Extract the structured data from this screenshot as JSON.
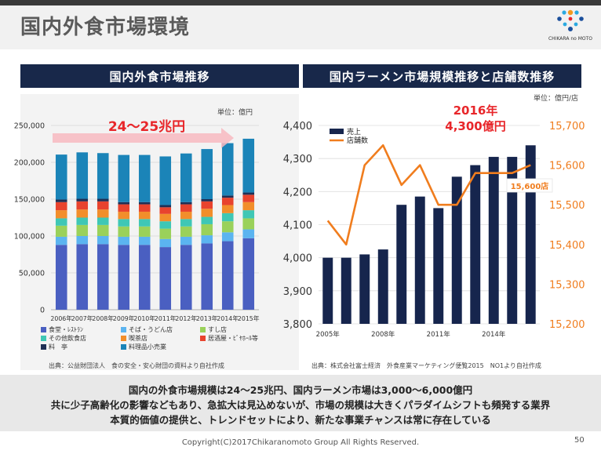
{
  "page": {
    "title": "国内外食市場環境",
    "logo_text": "CHIKARA no MOTO",
    "footer": "Copyright(C)2017Chikaranomoto Group All Rights Reserved.",
    "page_number": "50"
  },
  "left_panel": {
    "header": "国内外食市場推移",
    "unit": "単位：億円",
    "banner": "24～25兆円",
    "source": "出典：公益財団法人　食の安全・安心財団の資料より自社作成",
    "legend": [
      {
        "label": "食堂・ﾚｽﾄﾗﾝ",
        "color": "#4a5fc1"
      },
      {
        "label": "そば・うどん店",
        "color": "#5bb4f0"
      },
      {
        "label": "すし店",
        "color": "#9ad15a"
      },
      {
        "label": "その他飲食店",
        "color": "#3fc7b5"
      },
      {
        "label": "喫茶店",
        "color": "#f28e2b"
      },
      {
        "label": "居酒屋・ﾋﾞﾔﾎｰﾙ等",
        "color": "#e8432e"
      },
      {
        "label": "料　亭",
        "color": "#1f2f55"
      },
      {
        "label": "料理品小売業",
        "color": "#1b84b8"
      }
    ]
  },
  "right_panel": {
    "header": "国内ラーメン市場規模推移と店舗数推移",
    "unit": "単位：億円/店",
    "annotation_year": "2016年",
    "annotation_value": "4,300億円",
    "store_callout": "15,600店",
    "source": "出典：株式会社富士経済　外食産業マーケティング便覧2015　NO1より自社作成",
    "legend_bar": "売上",
    "legend_line": "店舗数"
  },
  "summary": {
    "line1": "国内の外食市場規模は24～25兆円、国内ラーメン市場は3,000～6,000億円",
    "line2": "共に少子高齢化の影響などもあり、急拡大は見込めないが、市場の規模は大きくパラダイムシフトも頻発する業界",
    "line3": "本質的価値の提供と、トレンドセットにより、新たな事業チャンスは常に存在している"
  },
  "colors": {
    "header_bg": "#18284a",
    "accent_red": "#e8262a",
    "line_orange": "#f07d1e",
    "bar_navy": "#16254d"
  },
  "chart_data": [
    {
      "type": "bar",
      "stacked": true,
      "title": "国内外食市場推移",
      "unit": "単位：億円",
      "categories": [
        "2006年",
        "2007年",
        "2008年",
        "2009年",
        "2010年",
        "2011年",
        "2012年",
        "2013年",
        "2014年",
        "2015年"
      ],
      "ylim": [
        0,
        250000
      ],
      "yticks": [
        0,
        50000,
        100000,
        150000,
        200000,
        250000
      ],
      "ytick_labels": [
        "0",
        "50,000",
        "100,000",
        "150,000",
        "200,000",
        "250,000"
      ],
      "series": [
        {
          "name": "食堂・ﾚｽﾄﾗﾝ",
          "values": [
            88000,
            89000,
            89000,
            88000,
            88000,
            85000,
            88000,
            90000,
            93000,
            97000
          ]
        },
        {
          "name": "そば・うどん店",
          "values": [
            11000,
            11000,
            11000,
            11000,
            11000,
            11000,
            11000,
            11000,
            12000,
            12000
          ]
        },
        {
          "name": "すし店",
          "values": [
            15000,
            15000,
            15000,
            14000,
            14000,
            14000,
            14000,
            15000,
            15000,
            15000
          ]
        },
        {
          "name": "その他飲食店",
          "values": [
            10000,
            10000,
            10000,
            10000,
            10000,
            10000,
            10000,
            10000,
            11000,
            11000
          ]
        },
        {
          "name": "喫茶店",
          "values": [
            11000,
            11000,
            11000,
            10000,
            10000,
            10000,
            10000,
            11000,
            11000,
            11000
          ]
        },
        {
          "name": "居酒屋・ﾋﾞﾔﾎｰﾙ等",
          "values": [
            11000,
            11000,
            11000,
            10000,
            10000,
            9000,
            10000,
            10000,
            10000,
            10000
          ]
        },
        {
          "name": "料　亭",
          "values": [
            3500,
            3500,
            3500,
            3000,
            3000,
            3000,
            3000,
            3000,
            3000,
            3000
          ]
        },
        {
          "name": "料理品小売業",
          "values": [
            61000,
            63000,
            62000,
            64000,
            64000,
            66000,
            66000,
            68000,
            71000,
            73000
          ]
        }
      ]
    },
    {
      "type": "bar+line",
      "title": "国内ラーメン市場規模推移と店舗数推移",
      "unit": "単位：億円/店",
      "categories": [
        "2005年",
        "2006年",
        "2007年",
        "2008年",
        "2009年",
        "2010年",
        "2011年",
        "2012年",
        "2013年",
        "2014年",
        "2015年",
        "2016年"
      ],
      "xtick_labels": [
        "2005年",
        "2008年",
        "2011年",
        "2014年"
      ],
      "bar_series": {
        "name": "売上",
        "values": [
          4000,
          4000,
          4010,
          4025,
          4160,
          4185,
          4150,
          4245,
          4280,
          4305,
          4305,
          4340
        ]
      },
      "line_series": {
        "name": "店舗数",
        "values": [
          15460,
          15400,
          15600,
          15650,
          15550,
          15600,
          15500,
          15500,
          15580,
          15580,
          15580,
          15600
        ]
      },
      "y_left": {
        "lim": [
          3800,
          4400
        ],
        "ticks": [
          3800,
          3900,
          4000,
          4100,
          4200,
          4300,
          4400
        ],
        "tick_labels": [
          "3,800",
          "3,900",
          "4,000",
          "4,100",
          "4,200",
          "4,300",
          "4,400"
        ]
      },
      "y_right": {
        "lim": [
          15200,
          15700
        ],
        "ticks": [
          15200,
          15300,
          15400,
          15500,
          15600,
          15700
        ],
        "tick_labels": [
          "15,200",
          "15,300",
          "15,400",
          "15,500",
          "15,600",
          "15,700"
        ]
      }
    }
  ]
}
